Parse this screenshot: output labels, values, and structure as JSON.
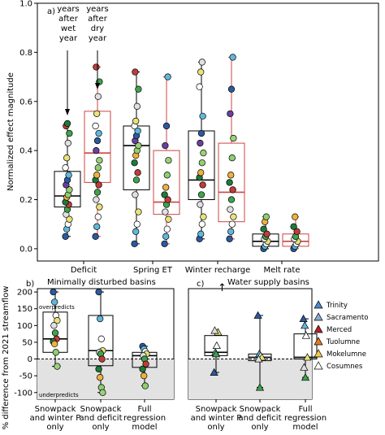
{
  "chart_data": [
    {
      "panel": "a)",
      "type": "box",
      "ylabel": "Normalized effect magnitude",
      "ylim": [
        -0.05,
        1.0
      ],
      "yticks": [
        "0.0",
        "0.2",
        "0.4",
        "0.6",
        "0.8",
        "1.0"
      ],
      "categories": [
        "Deficit",
        "Spring ET",
        "Winter recharge",
        "Melt rate"
      ],
      "annotations": {
        "wet": "years\nafter\nwet\nyear",
        "dry": "years\nafter\ndry\nyear"
      },
      "series": [
        {
          "name": "years after wet year",
          "color": "#000000",
          "boxes": [
            {
              "min": 0.05,
              "q1": 0.17,
              "median": 0.215,
              "q3": 0.315,
              "max": 0.51,
              "points": [
                0.05,
                0.08,
                0.1,
                0.12,
                0.14,
                0.16,
                0.18,
                0.19,
                0.21,
                0.22,
                0.24,
                0.26,
                0.28,
                0.3,
                0.33,
                0.37,
                0.43,
                0.47,
                0.5,
                0.51
              ]
            },
            {
              "min": 0.02,
              "q1": 0.24,
              "median": 0.42,
              "q3": 0.5,
              "max": 0.72,
              "points": [
                0.02,
                0.07,
                0.1,
                0.15,
                0.22,
                0.28,
                0.31,
                0.35,
                0.38,
                0.4,
                0.42,
                0.44,
                0.46,
                0.48,
                0.5,
                0.52,
                0.58,
                0.65,
                0.72
              ]
            },
            {
              "min": 0.04,
              "q1": 0.2,
              "median": 0.28,
              "q3": 0.48,
              "max": 0.76,
              "points": [
                0.04,
                0.06,
                0.1,
                0.13,
                0.18,
                0.22,
                0.26,
                0.29,
                0.31,
                0.35,
                0.39,
                0.43,
                0.47,
                0.54,
                0.66,
                0.72,
                0.76
              ]
            },
            {
              "min": 0.0,
              "q1": 0.01,
              "median": 0.03,
              "q3": 0.06,
              "max": 0.13,
              "points": [
                0.0,
                0.01,
                0.02,
                0.03,
                0.04,
                0.05,
                0.06,
                0.08,
                0.11,
                0.13
              ]
            }
          ]
        },
        {
          "name": "years after dry year",
          "color": "#cc4444",
          "boxes": [
            {
              "min": 0.05,
              "q1": 0.27,
              "median": 0.39,
              "q3": 0.56,
              "max": 0.74,
              "points": [
                0.05,
                0.09,
                0.13,
                0.17,
                0.2,
                0.23,
                0.26,
                0.28,
                0.3,
                0.33,
                0.36,
                0.4,
                0.44,
                0.47,
                0.5,
                0.55,
                0.62,
                0.68,
                0.74
              ]
            },
            {
              "min": 0.02,
              "q1": 0.14,
              "median": 0.19,
              "q3": 0.4,
              "max": 0.7,
              "points": [
                0.02,
                0.05,
                0.08,
                0.12,
                0.15,
                0.18,
                0.2,
                0.22,
                0.25,
                0.3,
                0.36,
                0.42,
                0.5,
                0.7
              ]
            },
            {
              "min": 0.04,
              "q1": 0.11,
              "median": 0.23,
              "q3": 0.43,
              "max": 0.78,
              "points": [
                0.04,
                0.07,
                0.1,
                0.13,
                0.16,
                0.2,
                0.24,
                0.27,
                0.3,
                0.37,
                0.45,
                0.55,
                0.65,
                0.78
              ]
            },
            {
              "min": 0.0,
              "q1": 0.01,
              "median": 0.03,
              "q3": 0.06,
              "max": 0.13,
              "points": [
                0.0,
                0.01,
                0.02,
                0.03,
                0.04,
                0.05,
                0.07,
                0.09,
                0.13
              ]
            }
          ]
        }
      ]
    },
    {
      "panel": "b)",
      "title": "Minimally disturbed basins",
      "type": "box",
      "ylabel": "% difference from 2021 streamflow",
      "ylim": [
        -120,
        210
      ],
      "yticks": [
        "-100",
        "-50",
        "0",
        "50",
        "100",
        "150",
        "200"
      ],
      "region_top": "overpredicts",
      "region_bottom": "underpredicts",
      "categories": [
        "Snowpack\nand winter P\nonly",
        "Snowpack\nand deficit\nonly",
        "Full\nregression\nmodel"
      ],
      "boxes": [
        {
          "min": -22,
          "q1": 20,
          "median": 60,
          "q3": 140,
          "max": 200,
          "points": [
            200,
            170,
            130,
            115,
            100,
            78,
            60,
            52,
            45,
            20,
            -22
          ]
        },
        {
          "min": -100,
          "q1": -20,
          "median": 25,
          "q3": 130,
          "max": 200,
          "points": [
            200,
            120,
            60,
            25,
            20,
            15,
            0,
            -30,
            -55,
            -85,
            -100
          ]
        },
        {
          "min": -80,
          "q1": -25,
          "median": 10,
          "q3": 20,
          "max": 38,
          "points": [
            38,
            30,
            22,
            15,
            10,
            0,
            -15,
            -30,
            -50,
            -80
          ]
        }
      ]
    },
    {
      "panel": "c)",
      "title": "Water supply basins",
      "type": "box",
      "ylim": [
        -120,
        210
      ],
      "categories": [
        "Snowpack\nand winter P\nonly",
        "Snowpack\nand deficit\nonly",
        "Full\nregression\nmodel"
      ],
      "legend": [
        {
          "name": "Trinity",
          "color": "#4a86c8"
        },
        {
          "name": "Sacramento",
          "color": "#87a9cc"
        },
        {
          "name": "Merced",
          "color": "#b22222"
        },
        {
          "name": "Tuolumne",
          "color": "#e07b1f"
        },
        {
          "name": "Mokelumne",
          "color": "#f2c94c"
        },
        {
          "name": "Cosumnes",
          "color": "#ffffff"
        }
      ],
      "boxes": [
        {
          "min": -40,
          "q1": 10,
          "median": 20,
          "q3": 70,
          "max": 85,
          "points": [
            -40,
            20,
            40,
            80,
            85,
            15
          ]
        },
        {
          "min": -85,
          "q1": -5,
          "median": 5,
          "q3": 15,
          "max": 130,
          "points": [
            130,
            15,
            10,
            5,
            0,
            -85
          ]
        },
        {
          "min": -55,
          "q1": 0,
          "median": 5,
          "q3": 75,
          "max": 120,
          "points": [
            120,
            100,
            70,
            5,
            -25,
            -55
          ]
        }
      ]
    }
  ],
  "arrow_note": "↑"
}
